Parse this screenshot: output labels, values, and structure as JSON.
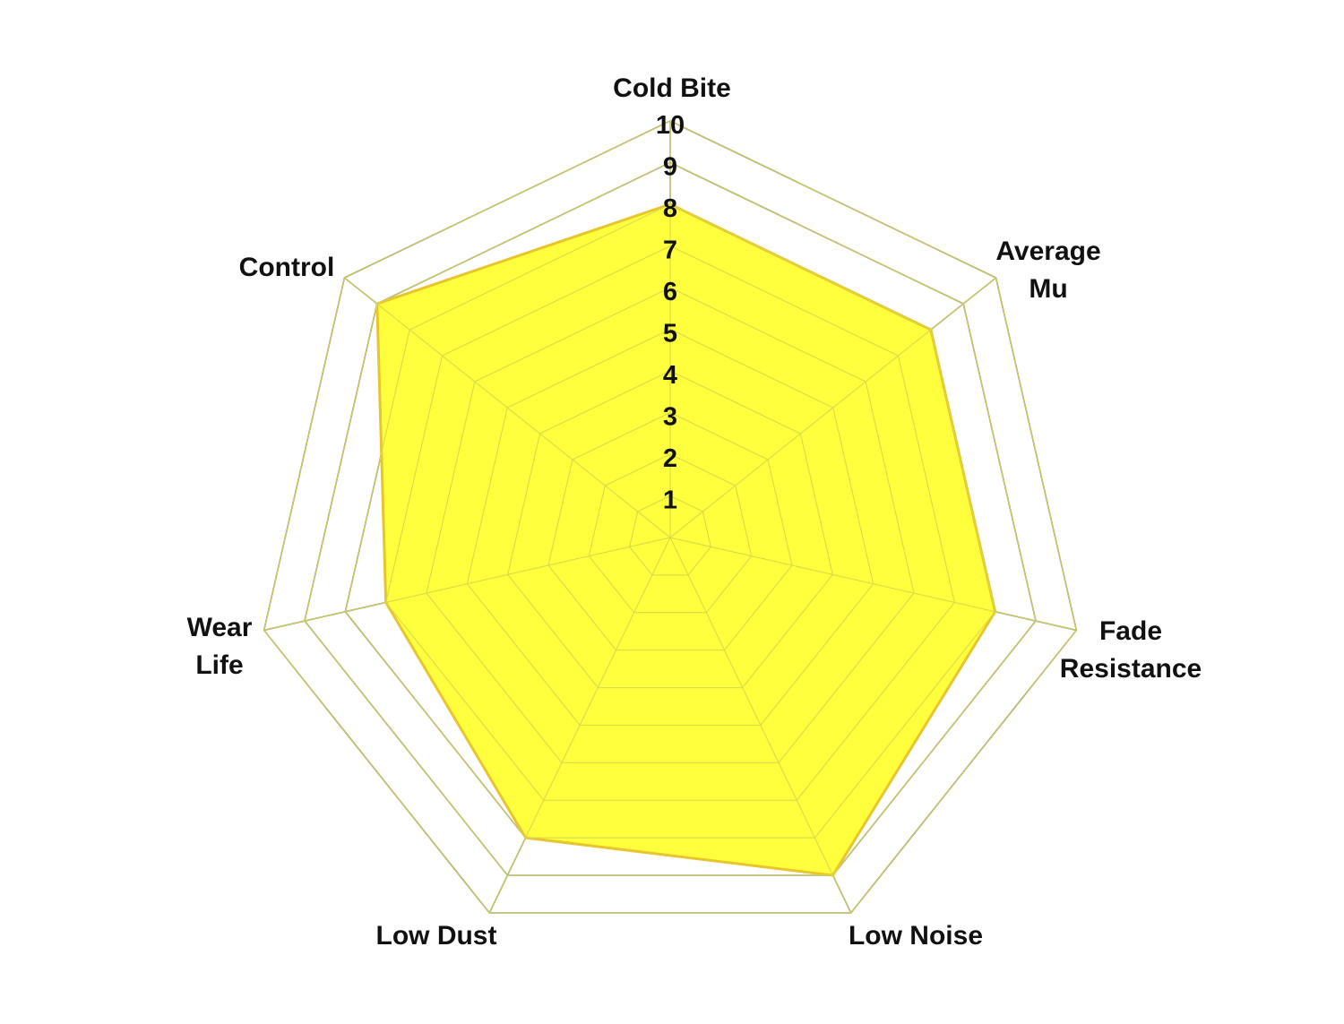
{
  "chart_data": {
    "type": "radar",
    "title": "",
    "categories": [
      "Cold Bite",
      "Average Mu",
      "Fade Resistance",
      "Low Noise",
      "Low Dust",
      "Wear Life",
      "Control"
    ],
    "series": [
      {
        "values": [
          8,
          8,
          8,
          9,
          8,
          7,
          9
        ]
      }
    ],
    "range": [
      0,
      10
    ],
    "ticks": [
      "1",
      "2",
      "3",
      "4",
      "5",
      "6",
      "7",
      "8",
      "9",
      "10"
    ],
    "grid": true,
    "legend": "none",
    "colors": {
      "fill": "#ffff33",
      "stroke": "#e8c52a",
      "grid": "#707070",
      "inner_grid": "#d8d850"
    }
  }
}
